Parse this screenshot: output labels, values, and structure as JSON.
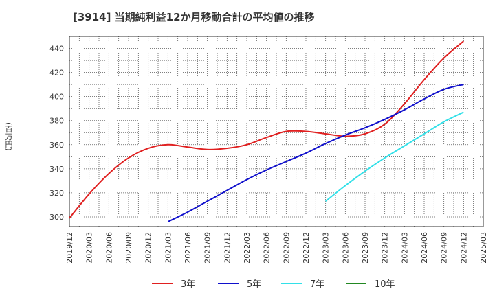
{
  "chart_data": {
    "type": "line",
    "title": "[3914]  当期純利益12か月移動合計の平均値の推移",
    "xlabel": "",
    "ylabel": "(百万円)",
    "x_ticks": [
      "2019/12",
      "2020/03",
      "2020/06",
      "2020/09",
      "2020/12",
      "2021/03",
      "2021/06",
      "2021/09",
      "2021/12",
      "2022/03",
      "2022/06",
      "2022/09",
      "2022/12",
      "2023/03",
      "2023/06",
      "2023/09",
      "2023/12",
      "2024/03",
      "2024/06",
      "2024/09",
      "2024/12",
      "2025/03"
    ],
    "ylim": [
      292,
      450
    ],
    "y_ticks": [
      300,
      320,
      340,
      360,
      380,
      400,
      420,
      440
    ],
    "grid": true,
    "legend_position": "bottom",
    "series": [
      {
        "name": "3年",
        "color": "#e02020",
        "x": [
          "2019/12",
          "2020/03",
          "2020/06",
          "2020/09",
          "2020/12",
          "2021/03",
          "2021/06",
          "2021/09",
          "2021/12",
          "2022/03",
          "2022/06",
          "2022/09",
          "2022/12",
          "2023/03",
          "2023/06",
          "2023/09",
          "2023/12",
          "2024/03",
          "2024/06",
          "2024/09",
          "2024/12"
        ],
        "values": [
          299,
          319,
          336,
          349,
          357,
          360,
          358,
          356,
          357,
          360,
          366,
          371,
          371,
          369,
          367,
          369,
          377,
          394,
          414,
          432,
          446
        ]
      },
      {
        "name": "5年",
        "color": "#1010cc",
        "x": [
          "2021/03",
          "2021/06",
          "2021/09",
          "2021/12",
          "2022/03",
          "2022/06",
          "2022/09",
          "2022/12",
          "2023/03",
          "2023/06",
          "2023/09",
          "2023/12",
          "2024/03",
          "2024/06",
          "2024/09",
          "2024/12"
        ],
        "values": [
          296,
          304,
          313,
          322,
          331,
          339,
          346,
          353,
          361,
          368,
          374,
          381,
          389,
          398,
          406,
          410
        ]
      },
      {
        "name": "7年",
        "color": "#33e0e8",
        "x": [
          "2023/03",
          "2023/06",
          "2023/09",
          "2023/12",
          "2024/03",
          "2024/06",
          "2024/09",
          "2024/12"
        ],
        "values": [
          313,
          326,
          338,
          349,
          359,
          369,
          379,
          387
        ]
      },
      {
        "name": "10年",
        "color": "#228822",
        "x": [],
        "values": []
      }
    ]
  }
}
